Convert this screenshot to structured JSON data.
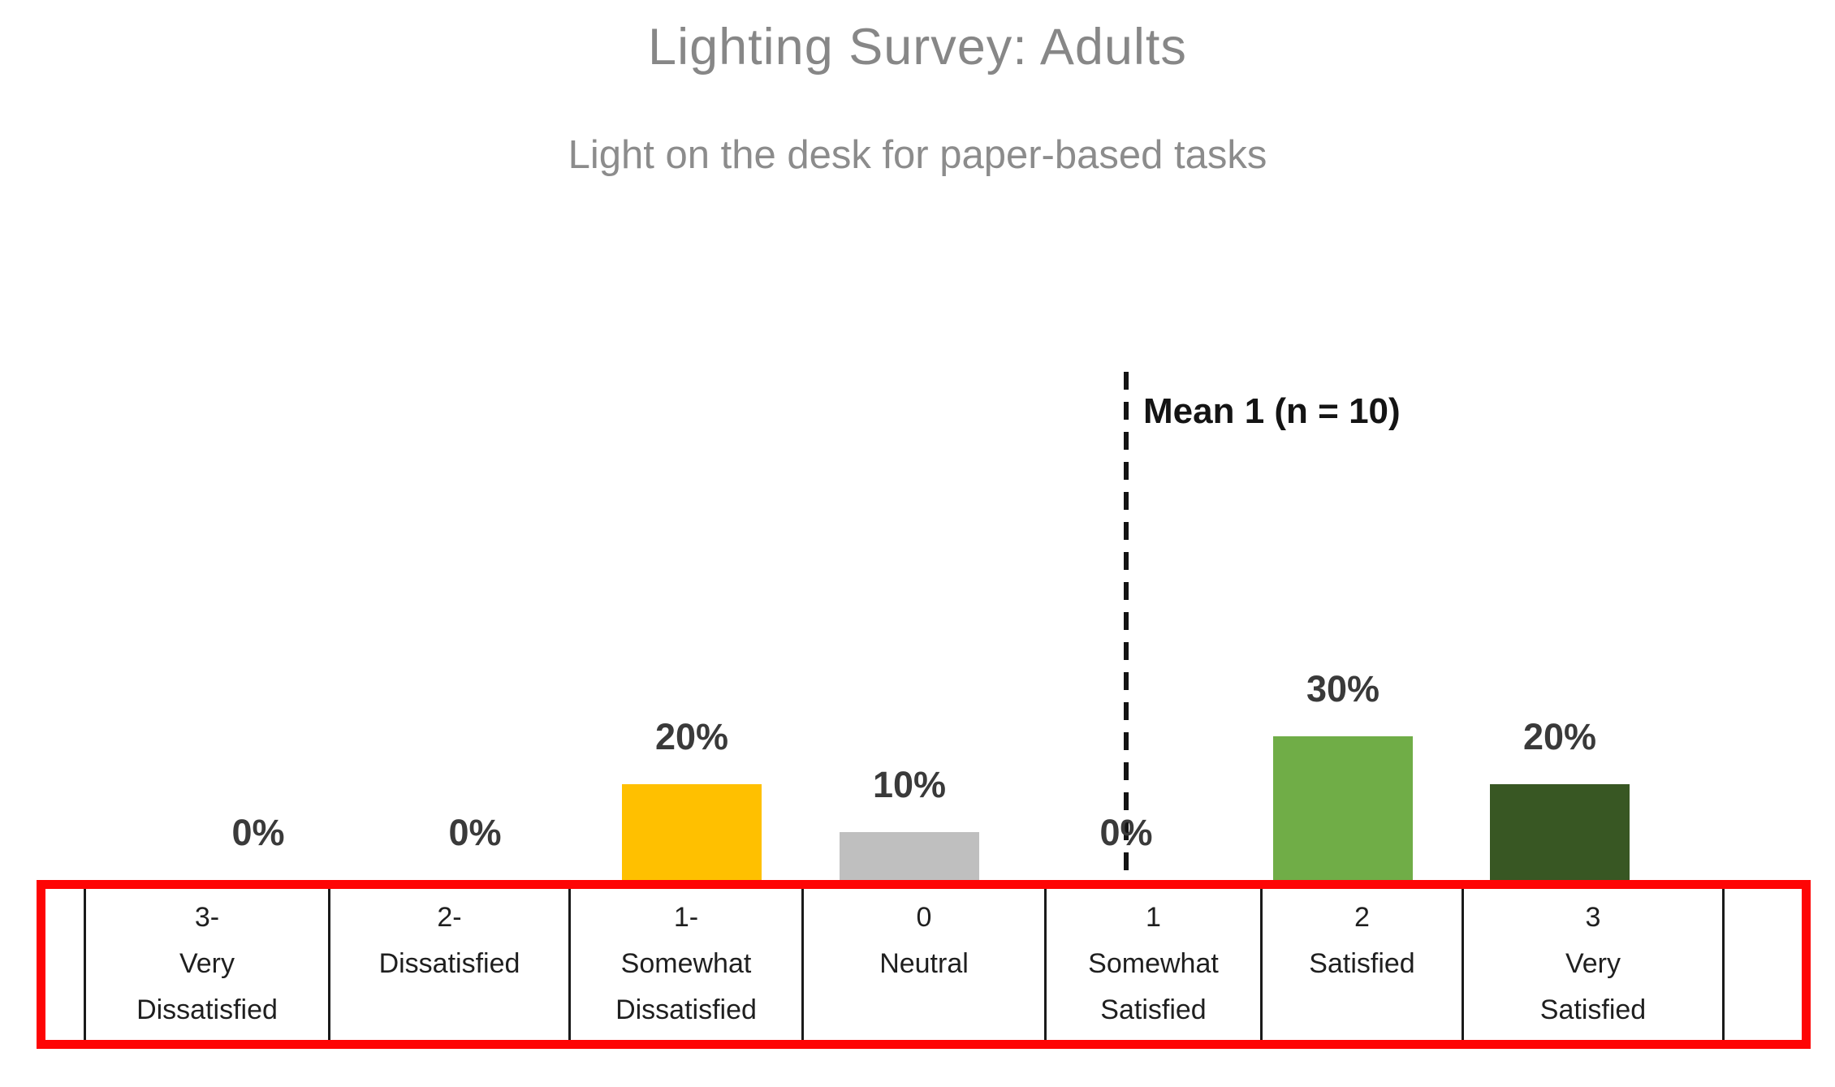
{
  "chart_data": {
    "type": "bar",
    "title": "Lighting Survey: Adults",
    "subtitle": "Light on the desk for paper-based tasks",
    "categories": [
      "3- Very Dissatisfied",
      "2- Dissatisfied",
      "1- Somewhat Dissatisfied",
      "0 Neutral",
      "1 Somewhat Satisfied",
      "2 Satisfied",
      "3 Very Satisfied"
    ],
    "values": [
      0,
      0,
      20,
      10,
      0,
      30,
      20
    ],
    "value_labels": [
      "0%",
      "0%",
      "20%",
      "10%",
      "0%",
      "30%",
      "20%"
    ],
    "bar_colors": [
      null,
      null,
      "#FFC000",
      "#BFBFBF",
      null,
      "#70AD47",
      "#385723"
    ],
    "unit": "percent",
    "ylim": [
      0,
      100
    ],
    "value_axis_visible": false,
    "grid": false,
    "legend": "none",
    "mean": 1,
    "n": 10,
    "annotation": "Mean 1 (n = 10)",
    "mean_line_category": "1 Somewhat Satisfied",
    "colors": {
      "title_gray": "#878787",
      "label_dark": "#3a3a3a",
      "mean_black": "#141414",
      "table_border_red": "#fe0505"
    }
  },
  "axis_table": {
    "cells": [
      [],
      [
        "3-",
        "Very",
        "Dissatisfied"
      ],
      [
        "2-",
        "Dissatisfied"
      ],
      [
        "1-",
        "Somewhat",
        "Dissatisfied"
      ],
      [
        "0",
        "Neutral"
      ],
      [
        "1",
        "Somewhat",
        "Satisfied"
      ],
      [
        "2",
        "Satisfied"
      ],
      [
        "3",
        "Very",
        "Satisfied"
      ],
      []
    ]
  }
}
